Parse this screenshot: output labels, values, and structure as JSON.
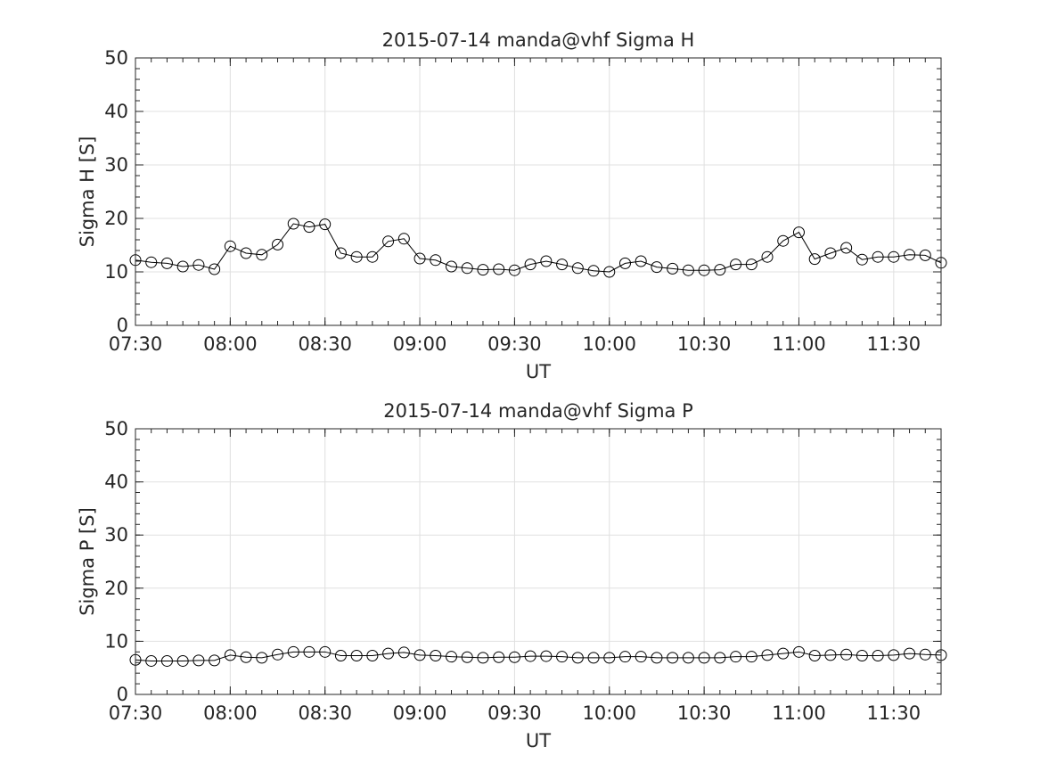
{
  "figure": {
    "background": "#ffffff",
    "axis_color": "#262626",
    "grid_color": "#e0e0e0",
    "line_color": "#000000"
  },
  "chart_data": [
    {
      "type": "line",
      "title": "2015-07-14  manda@vhf Sigma H",
      "xlabel": "UT",
      "ylabel": "Sigma H [S]",
      "xlim": [
        "07:30",
        "11:45"
      ],
      "ylim": [
        0,
        50
      ],
      "xticks": [
        "07:30",
        "08:00",
        "08:30",
        "09:00",
        "09:30",
        "10:00",
        "10:30",
        "11:00",
        "11:30"
      ],
      "yticks": [
        0,
        10,
        20,
        30,
        40,
        50
      ],
      "grid": true,
      "marker": "open-circle",
      "series": [
        {
          "x": [
            "07:30",
            "07:35",
            "07:40",
            "07:45",
            "07:50",
            "07:55",
            "08:00",
            "08:05",
            "08:10",
            "08:15",
            "08:20",
            "08:25",
            "08:30",
            "08:35",
            "08:40",
            "08:45",
            "08:50",
            "08:55",
            "09:00",
            "09:05",
            "09:10",
            "09:15",
            "09:20",
            "09:25",
            "09:30",
            "09:35",
            "09:40",
            "09:45",
            "09:50",
            "09:55",
            "10:00",
            "10:05",
            "10:10",
            "10:15",
            "10:20",
            "10:25",
            "10:30",
            "10:35",
            "10:40",
            "10:45",
            "10:50",
            "10:55",
            "11:00",
            "11:05",
            "11:10",
            "11:15",
            "11:20",
            "11:25",
            "11:30",
            "11:35",
            "11:40",
            "11:45"
          ],
          "y": [
            12.2,
            11.8,
            11.6,
            11.0,
            11.3,
            10.5,
            14.8,
            13.5,
            13.2,
            15.1,
            19.0,
            18.4,
            18.9,
            13.5,
            12.8,
            12.8,
            15.7,
            16.2,
            12.5,
            12.2,
            11.0,
            10.7,
            10.4,
            10.5,
            10.3,
            11.4,
            12.0,
            11.4,
            10.7,
            10.2,
            10.0,
            11.6,
            12.0,
            10.9,
            10.6,
            10.3,
            10.3,
            10.4,
            11.4,
            11.4,
            12.8,
            15.8,
            17.4,
            12.4,
            13.5,
            14.5,
            12.3,
            12.8,
            12.8,
            13.2,
            13.1,
            11.7
          ]
        }
      ]
    },
    {
      "type": "line",
      "title": "2015-07-14  manda@vhf Sigma P",
      "xlabel": "UT",
      "ylabel": "Sigma P [S]",
      "xlim": [
        "07:30",
        "11:45"
      ],
      "ylim": [
        0,
        50
      ],
      "xticks": [
        "07:30",
        "08:00",
        "08:30",
        "09:00",
        "09:30",
        "10:00",
        "10:30",
        "11:00",
        "11:30"
      ],
      "yticks": [
        0,
        10,
        20,
        30,
        40,
        50
      ],
      "grid": true,
      "marker": "open-circle",
      "series": [
        {
          "x": [
            "07:30",
            "07:35",
            "07:40",
            "07:45",
            "07:50",
            "07:55",
            "08:00",
            "08:05",
            "08:10",
            "08:15",
            "08:20",
            "08:25",
            "08:30",
            "08:35",
            "08:40",
            "08:45",
            "08:50",
            "08:55",
            "09:00",
            "09:05",
            "09:10",
            "09:15",
            "09:20",
            "09:25",
            "09:30",
            "09:35",
            "09:40",
            "09:45",
            "09:50",
            "09:55",
            "10:00",
            "10:05",
            "10:10",
            "10:15",
            "10:20",
            "10:25",
            "10:30",
            "10:35",
            "10:40",
            "10:45",
            "10:50",
            "10:55",
            "11:00",
            "11:05",
            "11:10",
            "11:15",
            "11:20",
            "11:25",
            "11:30",
            "11:35",
            "11:40",
            "11:45"
          ],
          "y": [
            6.5,
            6.3,
            6.3,
            6.3,
            6.4,
            6.4,
            7.4,
            7.0,
            6.9,
            7.5,
            8.0,
            8.0,
            8.0,
            7.3,
            7.3,
            7.3,
            7.7,
            7.9,
            7.4,
            7.3,
            7.1,
            7.0,
            6.9,
            7.0,
            7.0,
            7.2,
            7.2,
            7.1,
            6.9,
            6.9,
            6.9,
            7.1,
            7.1,
            6.9,
            6.9,
            6.9,
            6.9,
            6.9,
            7.1,
            7.1,
            7.4,
            7.7,
            8.0,
            7.3,
            7.4,
            7.5,
            7.3,
            7.3,
            7.4,
            7.7,
            7.5,
            7.4
          ]
        }
      ]
    }
  ]
}
